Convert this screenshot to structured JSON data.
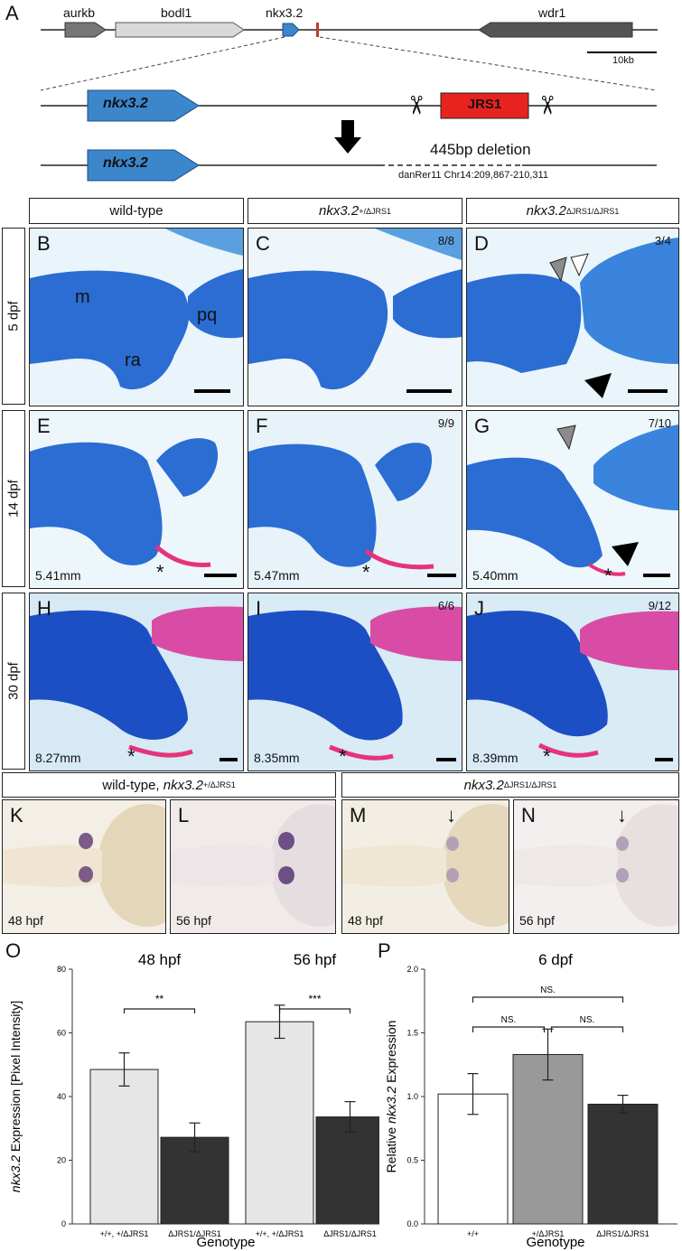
{
  "panel_a": {
    "letter": "A",
    "genes": [
      "aurkb",
      "bodl1",
      "nkx3.2",
      "wdr1"
    ],
    "scalebar": "10kb",
    "gene_zoom": "nkx3.2",
    "element": "JRS1",
    "gene_deleted": "nkx3.2",
    "deletion": "445bp deletion",
    "coords": "danRer11 Chr14:209,867-210,311"
  },
  "column_headers": {
    "wt": "wild-type",
    "het_gene": "nkx3.2",
    "het_sup": "+/ΔJRS1",
    "hom_gene": "nkx3.2",
    "hom_sup": "ΔJRS1/ΔJRS1"
  },
  "row_labels": [
    "5 dpf",
    "14 dpf",
    "30 dpf"
  ],
  "cartilage_panels": [
    {
      "letter": "B",
      "frac": "",
      "len": "",
      "labels": [
        "m",
        "pq",
        "ra"
      ]
    },
    {
      "letter": "C",
      "frac": "8/8",
      "len": ""
    },
    {
      "letter": "D",
      "frac": "3/4",
      "len": ""
    },
    {
      "letter": "E",
      "frac": "",
      "len": "5.41mm"
    },
    {
      "letter": "F",
      "frac": "9/9",
      "len": "5.47mm"
    },
    {
      "letter": "G",
      "frac": "7/10",
      "len": "5.40mm"
    },
    {
      "letter": "H",
      "frac": "",
      "len": "8.27mm"
    },
    {
      "letter": "I",
      "frac": "6/6",
      "len": "8.35mm"
    },
    {
      "letter": "J",
      "frac": "9/12",
      "len": "8.39mm"
    }
  ],
  "ish_headers": {
    "left_a": "wild-type, ",
    "left_gene": "nkx3.2",
    "left_sup": "+/ΔJRS1",
    "right_gene": "nkx3.2",
    "right_sup": "ΔJRS1/ΔJRS1"
  },
  "ish_panels": [
    {
      "letter": "K",
      "stage": "48 hpf"
    },
    {
      "letter": "L",
      "stage": "56 hpf"
    },
    {
      "letter": "M",
      "stage": "48 hpf"
    },
    {
      "letter": "N",
      "stage": "56 hpf"
    }
  ],
  "chart_data": [
    {
      "type": "bar",
      "panel": "O",
      "ylabel_gene": "nkx3.2",
      "ylabel_rest": " Expression [Pixel Intensity]",
      "xlabel": "Genotype",
      "ylim": [
        0,
        80
      ],
      "yticks": [
        "0",
        "20",
        "40",
        "60",
        "80"
      ],
      "groups": [
        {
          "title": "48 hpf",
          "categories": [
            "+/+, +/ΔJRS1",
            "ΔJRS1/ΔJRS1"
          ],
          "values": [
            48.5,
            27.2
          ],
          "errors": [
            5.2,
            4.5
          ],
          "sig": "**"
        },
        {
          "title": "56 hpf",
          "categories": [
            "+/+, +/ΔJRS1",
            "ΔJRS1/ΔJRS1"
          ],
          "values": [
            63.5,
            33.6
          ],
          "errors": [
            5.2,
            4.8
          ],
          "sig": "***"
        }
      ],
      "colors": [
        "#e6e6e6",
        "#333333"
      ]
    },
    {
      "type": "bar",
      "panel": "P",
      "title": "6 dpf",
      "ylabel_a": "Relative ",
      "ylabel_gene": "nkx3.2",
      "ylabel_rest": " Expression",
      "xlabel": "Genotype",
      "ylim": [
        0,
        2.0
      ],
      "yticks": [
        "0.0",
        "0.5",
        "1.0",
        "1.5",
        "2.0"
      ],
      "categories": [
        "+/+",
        "+/ΔJRS1",
        "ΔJRS1/ΔJRS1"
      ],
      "values": [
        1.02,
        1.33,
        0.94
      ],
      "errors": [
        0.16,
        0.2,
        0.07
      ],
      "comparisons": [
        "NS.",
        "NS.",
        "NS."
      ],
      "colors": [
        "#ffffff",
        "#999999",
        "#333333"
      ]
    }
  ]
}
